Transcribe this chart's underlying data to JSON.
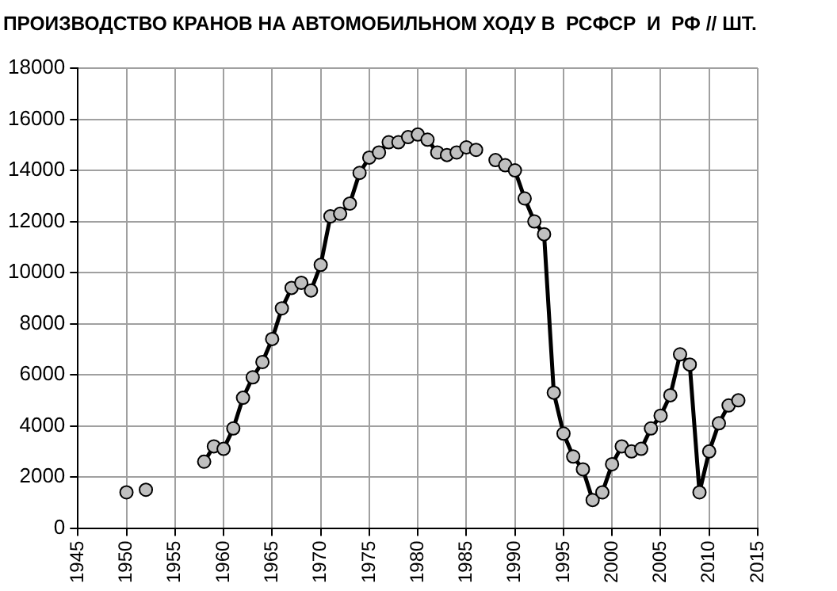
{
  "chart_data": {
    "type": "line",
    "title": "ПРОИЗВОДСТВО КРАНОВ НА АВТОМОБИЛЬНОМ ХОДУ В  РСФСР  И  РФ // ШТ.",
    "x": [
      1950,
      1951,
      1952,
      1953,
      1957,
      1958,
      1959,
      1960,
      1961,
      1962,
      1963,
      1964,
      1965,
      1966,
      1967,
      1968,
      1969,
      1970,
      1971,
      1972,
      1973,
      1974,
      1975,
      1976,
      1977,
      1978,
      1979,
      1980,
      1981,
      1982,
      1983,
      1984,
      1985,
      1986,
      1987,
      1988,
      1989,
      1990,
      1991,
      1992,
      1993,
      1994,
      1995,
      1996,
      1997,
      1998,
      1999,
      2000,
      2001,
      2002,
      2003,
      2004,
      2005,
      2006,
      2007,
      2008,
      2009,
      2010,
      2011,
      2012,
      2013
    ],
    "series": [
      {
        "color": "#000000",
        "values": [
          1400,
          null,
          1500,
          null,
          null,
          2600,
          3200,
          3100,
          3900,
          5100,
          5900,
          6500,
          7400,
          8600,
          9400,
          9600,
          9300,
          10300,
          12200,
          12300,
          12700,
          13900,
          14500,
          14700,
          15100,
          15100,
          15300,
          15400,
          15200,
          14700,
          14600,
          14700,
          14900,
          14800,
          null,
          14400,
          14200,
          14000,
          12900,
          12000,
          11500,
          5300,
          3700,
          2800,
          2300,
          1100,
          1400,
          2500,
          3200,
          3000,
          3100,
          3900,
          4400,
          5200,
          6800,
          6400,
          1400,
          3000,
          4100,
          4800,
          5000
        ]
      }
    ],
    "xlim": [
      1945,
      2015
    ],
    "xticks": [
      1945,
      1950,
      1955,
      1960,
      1965,
      1970,
      1975,
      1980,
      1985,
      1990,
      1995,
      2000,
      2005,
      2010,
      2015
    ],
    "ylim": [
      0,
      18000
    ],
    "yticks": [
      0,
      2000,
      4000,
      6000,
      8000,
      10000,
      12000,
      14000,
      16000,
      18000
    ],
    "grid": true,
    "legend": false,
    "marker": "circle",
    "line_style": "solid"
  }
}
